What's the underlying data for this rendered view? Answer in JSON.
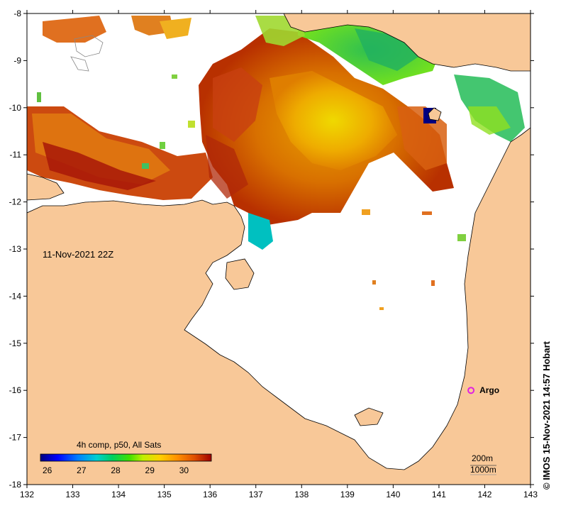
{
  "map": {
    "timestamp": "11-Nov-2021 22Z",
    "credit": "© IMOS 15-Nov-2021 14:57 Hobart",
    "lon_ticks": [
      "132",
      "133",
      "134",
      "135",
      "136",
      "137",
      "138",
      "139",
      "140",
      "141",
      "142",
      "143"
    ],
    "lat_ticks": [
      "-8",
      "-9",
      "-10",
      "-11",
      "-12",
      "-13",
      "-14",
      "-15",
      "-16",
      "-17",
      "-18"
    ],
    "lon_range": [
      132,
      143
    ],
    "lat_range": [
      -18,
      -8
    ],
    "land_color": "#f8c898",
    "sea_color": "#ffffff",
    "argo": {
      "label": "Argo",
      "lon": 141.7,
      "lat": -16.0,
      "color": "#e020e0"
    },
    "depth_legend": [
      "200m",
      "1000m"
    ],
    "colorbar": {
      "title": "4h comp, p50, All Sats",
      "ticks": [
        "26",
        "27",
        "28",
        "29",
        "30"
      ],
      "range": [
        25.8,
        30.8
      ],
      "colors": [
        "#00007f",
        "#0000ff",
        "#0080ff",
        "#00d0d0",
        "#00d060",
        "#40e000",
        "#c0f000",
        "#ffd000",
        "#ff9000",
        "#e05000",
        "#a00000"
      ]
    }
  }
}
